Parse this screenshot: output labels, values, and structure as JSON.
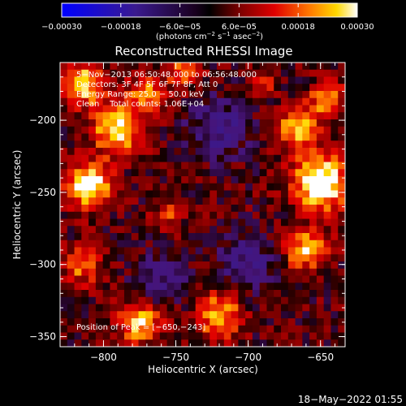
{
  "chart_data": {
    "type": "heatmap",
    "title": "Reconstructed RHESSI Image",
    "xlabel": "Heliocentric X (arcsec)",
    "ylabel": "Heliocentric Y (arcsec)",
    "xlim": [
      -830,
      -633
    ],
    "ylim": [
      -357,
      -160
    ],
    "x_ticks": [
      -800,
      -750,
      -700,
      -650
    ],
    "y_ticks": [
      -350,
      -300,
      -250,
      -200
    ],
    "x_tick_labels": [
      "−800",
      "−750",
      "−700",
      "−650"
    ],
    "y_tick_labels": [
      "−350",
      "−300",
      "−250",
      "−200"
    ],
    "colorbar": {
      "range": [
        -0.0003,
        0.0003
      ],
      "tick_values": [
        -0.0003,
        -0.00018,
        -6e-05,
        6e-05,
        0.00018,
        0.0003
      ],
      "tick_labels": [
        "−0.00030",
        "−0.00018",
        "−6.0e−05",
        "6.0e−05",
        "0.00018",
        "0.00030"
      ],
      "unit_prefix": "(photons cm",
      "unit_exp1": "−2",
      "unit_mid": " s",
      "unit_exp2": "−1",
      "unit_mid2": " asec",
      "unit_exp3": "−2",
      "unit_suffix": ")"
    },
    "annotations": [
      "5−Nov−2013 06:50:48.000 to 06:56:48.000",
      "Detectors: 3F 4F 5F 6F 7F 8F, Att 0",
      "Energy Range: 25.0 − 50.0 keV",
      "Clean    Total counts: 1.06E+04"
    ],
    "peak_label": "Position of Peak = [−650,−243]",
    "peak_position": [
      -650,
      -243
    ],
    "image_grid": {
      "cols": 40,
      "rows": 40,
      "sources": [
        {
          "x": -815,
          "y": -175,
          "amp": 0.00026,
          "sigma": 10
        },
        {
          "x": -790,
          "y": -205,
          "amp": 0.00028,
          "sigma": 12
        },
        {
          "x": -810,
          "y": -245,
          "amp": 0.0003,
          "sigma": 11
        },
        {
          "x": -770,
          "y": -180,
          "amp": 0.0002,
          "sigma": 8
        },
        {
          "x": -745,
          "y": -165,
          "amp": 0.00018,
          "sigma": 8
        },
        {
          "x": -650,
          "y": -243,
          "amp": 0.00034,
          "sigma": 13
        },
        {
          "x": -665,
          "y": -205,
          "amp": 0.00024,
          "sigma": 10
        },
        {
          "x": -645,
          "y": -185,
          "amp": 0.0002,
          "sigma": 8
        },
        {
          "x": -660,
          "y": -290,
          "amp": 0.00022,
          "sigma": 10
        },
        {
          "x": -720,
          "y": -335,
          "amp": 0.00022,
          "sigma": 11
        },
        {
          "x": -775,
          "y": -340,
          "amp": 0.00024,
          "sigma": 10
        },
        {
          "x": -815,
          "y": -300,
          "amp": 0.00018,
          "sigma": 9
        },
        {
          "x": -755,
          "y": -265,
          "amp": 0.00012,
          "sigma": 7
        },
        {
          "x": -690,
          "y": -175,
          "amp": 0.00012,
          "sigma": 6
        },
        {
          "x": -720,
          "y": -205,
          "amp": -0.00014,
          "sigma": 14
        },
        {
          "x": -700,
          "y": -300,
          "amp": -0.00012,
          "sigma": 14
        },
        {
          "x": -760,
          "y": -310,
          "amp": -0.0001,
          "sigma": 12
        }
      ]
    }
  },
  "footer": {
    "date": "18−May−2022 01:55"
  }
}
